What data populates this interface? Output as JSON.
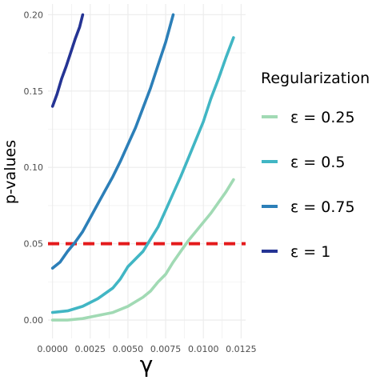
{
  "chart_data": {
    "type": "line",
    "title": "",
    "xlabel": "γ",
    "ylabel": "p-values",
    "xlim": [
      -0.0003,
      0.0128
    ],
    "ylim": [
      -0.012,
      0.207
    ],
    "x_ticks": [
      0.0,
      0.0025,
      0.005,
      0.0075,
      0.01,
      0.0125
    ],
    "x_tick_labels": [
      "0.0000",
      "0.0025",
      "0.0050",
      "0.0075",
      "0.0100",
      "0.0125"
    ],
    "y_ticks": [
      0.0,
      0.05,
      0.1,
      0.15,
      0.2
    ],
    "y_tick_labels": [
      "0.00",
      "0.05",
      "0.10",
      "0.15",
      "0.20"
    ],
    "grid": true,
    "legend": {
      "title": "Regularization",
      "placement": "right"
    },
    "threshold": {
      "y": 0.05,
      "color": "#e41a1c",
      "style": "dashed"
    },
    "series": [
      {
        "name": "ε = 0.25",
        "color": "#a1dab4",
        "x": [
          0.0,
          0.001,
          0.002,
          0.003,
          0.004,
          0.005,
          0.006,
          0.0065,
          0.007,
          0.0075,
          0.008,
          0.0085,
          0.009,
          0.0095,
          0.01,
          0.0105,
          0.011,
          0.0115,
          0.012
        ],
        "y": [
          0.0,
          0.0,
          0.001,
          0.003,
          0.005,
          0.009,
          0.015,
          0.019,
          0.025,
          0.03,
          0.038,
          0.045,
          0.052,
          0.058,
          0.064,
          0.07,
          0.077,
          0.084,
          0.092
        ]
      },
      {
        "name": "ε = 0.5",
        "color": "#41b6c4",
        "x": [
          0.0,
          0.001,
          0.002,
          0.003,
          0.004,
          0.0045,
          0.005,
          0.0055,
          0.006,
          0.0065,
          0.007,
          0.0075,
          0.008,
          0.0085,
          0.009,
          0.0095,
          0.01,
          0.0105,
          0.011,
          0.0115,
          0.012
        ],
        "y": [
          0.005,
          0.006,
          0.009,
          0.014,
          0.021,
          0.027,
          0.035,
          0.04,
          0.045,
          0.053,
          0.061,
          0.072,
          0.083,
          0.094,
          0.106,
          0.118,
          0.13,
          0.145,
          0.158,
          0.172,
          0.185
        ]
      },
      {
        "name": "ε = 0.75",
        "color": "#2c7fb8",
        "x": [
          0.0,
          0.0005,
          0.001,
          0.0015,
          0.002,
          0.0025,
          0.003,
          0.0035,
          0.004,
          0.0045,
          0.005,
          0.0055,
          0.006,
          0.0065,
          0.007,
          0.0075,
          0.008
        ],
        "y": [
          0.034,
          0.038,
          0.045,
          0.051,
          0.058,
          0.067,
          0.076,
          0.085,
          0.094,
          0.104,
          0.115,
          0.126,
          0.139,
          0.152,
          0.167,
          0.182,
          0.2
        ]
      },
      {
        "name": "ε = 1",
        "color": "#253494",
        "x": [
          0.0,
          0.0003,
          0.0006,
          0.0009,
          0.0012,
          0.0015,
          0.0018,
          0.002
        ],
        "y": [
          0.14,
          0.148,
          0.158,
          0.166,
          0.175,
          0.184,
          0.192,
          0.2
        ]
      }
    ]
  }
}
